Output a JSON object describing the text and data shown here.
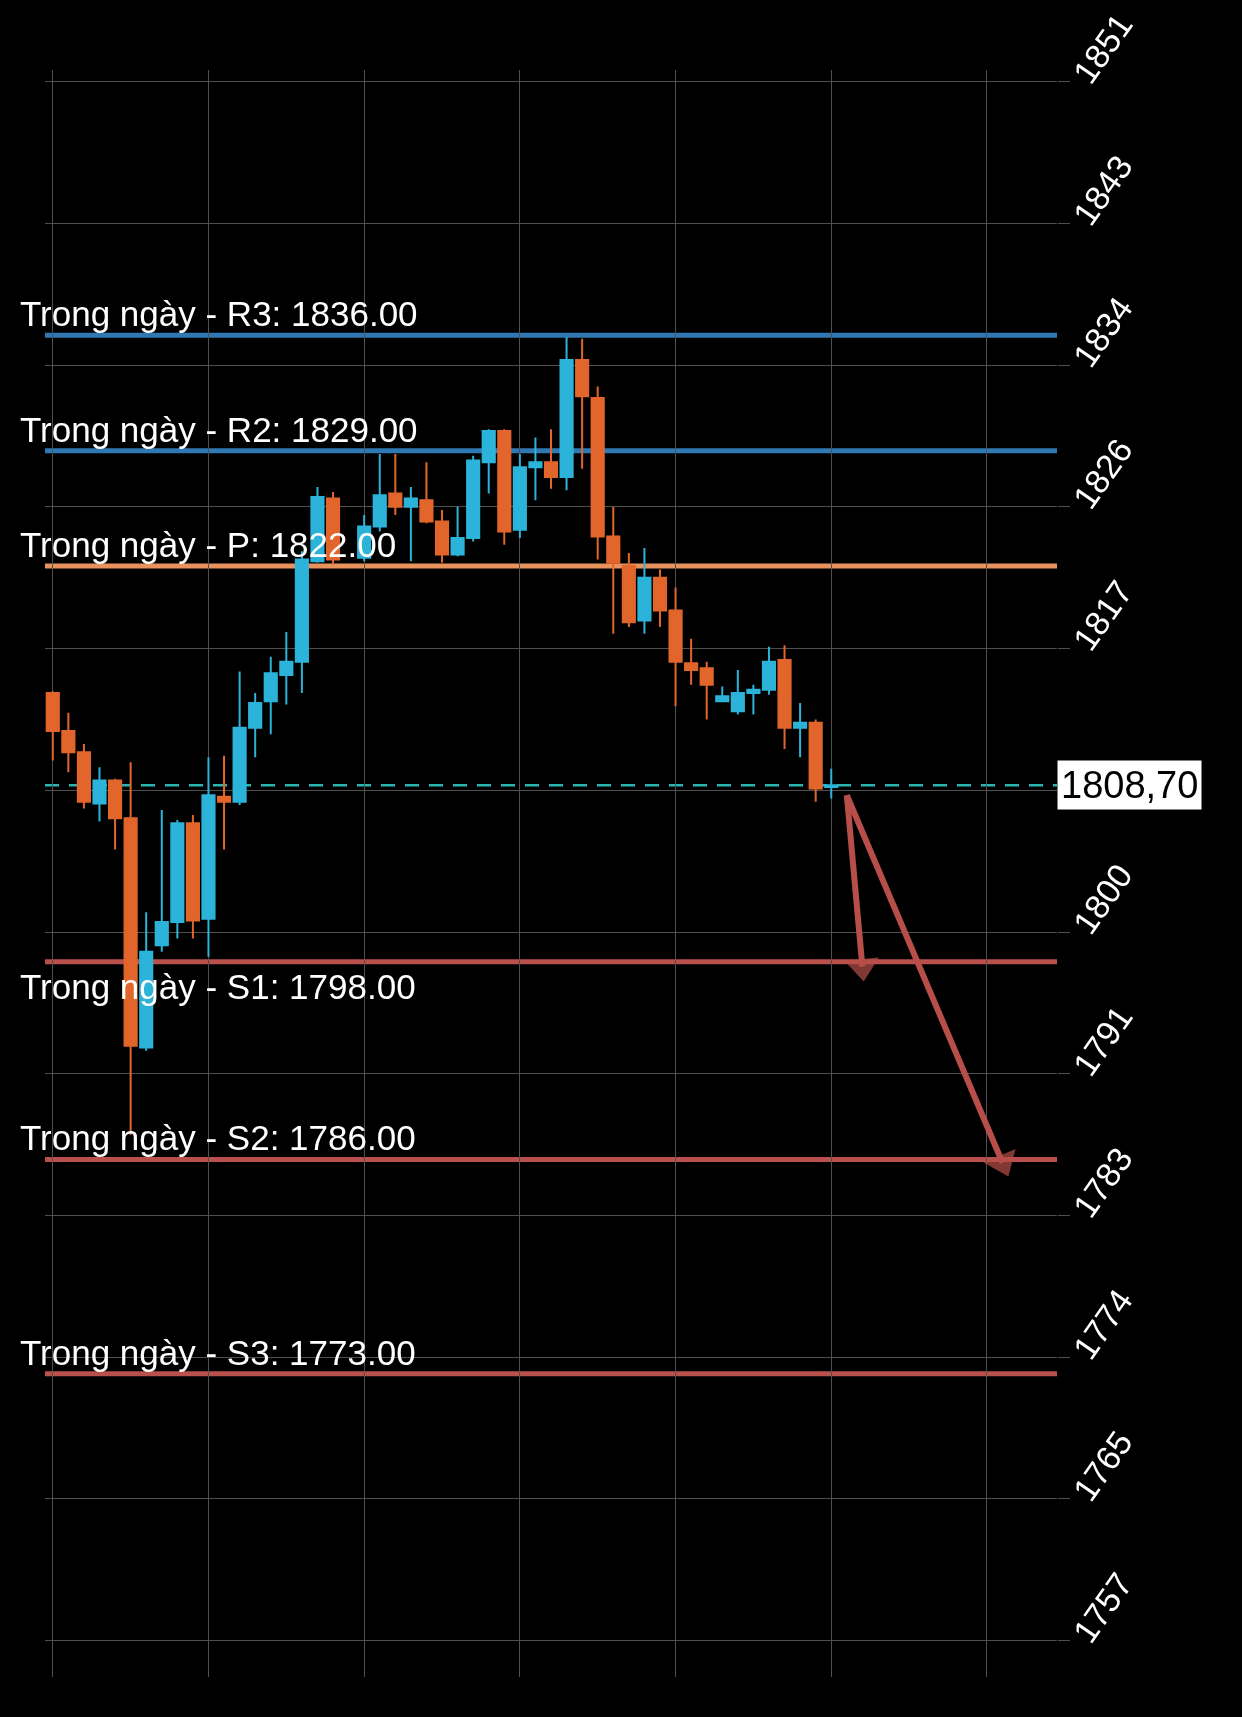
{
  "chart_data": {
    "type": "candlestick",
    "categories": [
      null,
      null,
      null,
      null,
      null,
      null,
      null,
      null,
      null,
      null,
      null,
      null,
      null,
      null,
      null,
      null,
      null,
      null,
      null,
      null,
      null,
      null,
      null,
      null,
      null,
      null,
      null,
      null,
      null,
      null,
      null,
      null,
      null,
      null,
      null,
      null,
      null,
      null,
      null,
      null,
      null,
      null,
      null,
      null,
      null,
      null,
      null,
      null,
      null,
      null,
      null,
      null,
      null,
      null,
      null,
      null,
      null,
      null,
      null,
      null,
      null,
      null,
      null,
      null,
      null
    ],
    "ohlc": [
      [
        1814.3,
        1814.4,
        1810.2,
        1812.0
      ],
      [
        1812.0,
        1813.1,
        1809.5,
        1810.7
      ],
      [
        1810.7,
        1811.2,
        1807.3,
        1807.7
      ],
      [
        1807.6,
        1809.8,
        1806.5,
        1809.0
      ],
      [
        1809.0,
        1809.1,
        1804.8,
        1806.7
      ],
      [
        1806.7,
        1810.1,
        1787.5,
        1792.9
      ],
      [
        1792.8,
        1801.0,
        1792.6,
        1798.6
      ],
      [
        1799.0,
        1807.2,
        1798.6,
        1800.4
      ],
      [
        1800.4,
        1806.6,
        1799.4,
        1806.4
      ],
      [
        1806.4,
        1806.9,
        1799.4,
        1800.5
      ],
      [
        1800.6,
        1810.4,
        1798.3,
        1808.1
      ],
      [
        1808.0,
        1810.5,
        1804.8,
        1807.7
      ],
      [
        1807.7,
        1815.6,
        1807.5,
        1812.2
      ],
      [
        1812.2,
        1814.3,
        1810.4,
        1813.7
      ],
      [
        1813.8,
        1816.5,
        1811.8,
        1815.5
      ],
      [
        1815.4,
        1818.0,
        1813.6,
        1816.2
      ],
      [
        1816.2,
        1822.9,
        1814.3,
        1822.4
      ],
      [
        1822.3,
        1826.8,
        1822.2,
        1826.2
      ],
      [
        1826.1,
        1826.5,
        1822.1,
        1822.4
      ],
      null,
      [
        1822.5,
        1825.1,
        1822.3,
        1824.4
      ],
      [
        1824.4,
        1828.8,
        1824.1,
        1826.3
      ],
      [
        1826.4,
        1828.8,
        1825.1,
        1825.6
      ],
      [
        1825.6,
        1826.8,
        1822.3,
        1826.1
      ],
      [
        1826.0,
        1828.3,
        1824.6,
        1824.7
      ],
      [
        1824.7,
        1825.4,
        1822.2,
        1822.7
      ],
      [
        1822.7,
        1825.6,
        1822.6,
        1823.7
      ],
      [
        1823.7,
        1828.7,
        1823.5,
        1828.4
      ],
      [
        1828.3,
        1830.3,
        1826.4,
        1830.2
      ],
      [
        1830.2,
        1830.3,
        1823.3,
        1824.1
      ],
      [
        1824.2,
        1828.8,
        1823.7,
        1828.0
      ],
      [
        1828.0,
        1829.8,
        1826.0,
        1828.3
      ],
      [
        1828.3,
        1830.3,
        1826.7,
        1827.4
      ],
      [
        1827.4,
        1835.9,
        1826.6,
        1834.5
      ],
      [
        1834.5,
        1835.8,
        1827.9,
        1832.3
      ],
      [
        1832.2,
        1832.9,
        1822.4,
        1823.8
      ],
      [
        1823.8,
        1825.6,
        1817.9,
        1822.2
      ],
      [
        1822.0,
        1822.8,
        1818.3,
        1818.6
      ],
      [
        1818.7,
        1823.1,
        1817.9,
        1821.3
      ],
      [
        1821.3,
        1821.8,
        1818.3,
        1819.3
      ],
      [
        1819.3,
        1820.7,
        1813.5,
        1816.2
      ],
      [
        1816.1,
        1817.6,
        1814.8,
        1815.7
      ],
      [
        1815.8,
        1816.2,
        1812.7,
        1814.8
      ],
      [
        1813.8,
        1814.7,
        1813.8,
        1814.1
      ],
      [
        1813.2,
        1815.7,
        1813.0,
        1814.3
      ],
      [
        1814.3,
        1814.8,
        1813.0,
        1814.5
      ],
      [
        1814.5,
        1817.1,
        1814.2,
        1816.2
      ],
      [
        1816.3,
        1817.2,
        1810.9,
        1812.2
      ],
      [
        1812.2,
        1813.7,
        1810.4,
        1812.5
      ],
      [
        1812.5,
        1812.7,
        1807.7,
        1808.5
      ],
      [
        1808.6,
        1809.7,
        1807.9,
        1808.7
      ],
      null,
      null,
      null,
      null,
      null,
      null,
      null,
      null,
      null,
      null,
      null,
      null,
      null,
      null
    ],
    "colors": [
      "#e2652b",
      "#e2652b",
      "#e2652b",
      "#2cb3d9",
      "#e2652b",
      "#e2652b",
      "#2cb3d9",
      "#2cb3d9",
      "#2cb3d9",
      "#e2652b",
      "#2cb3d9",
      "#e2652b",
      "#2cb3d9",
      "#2cb3d9",
      "#2cb3d9",
      "#2cb3d9",
      "#2cb3d9",
      "#2cb3d9",
      "#e2652b",
      null,
      "#2cb3d9",
      "#2cb3d9",
      "#e2652b",
      "#2cb3d9",
      "#e2652b",
      "#e2652b",
      "#2cb3d9",
      "#2cb3d9",
      "#2cb3d9",
      "#e2652b",
      "#2cb3d9",
      "#2cb3d9",
      "#e2652b",
      "#2cb3d9",
      "#e2652b",
      "#e2652b",
      "#e2652b",
      "#e2652b",
      "#2cb3d9",
      "#e2652b",
      "#e2652b",
      "#e2652b",
      "#e2652b",
      "#2cb3d9",
      "#2cb3d9",
      "#2cb3d9",
      "#2cb3d9",
      "#e2652b",
      "#2cb3d9",
      "#e2652b",
      "#2cb3d9",
      null,
      null,
      null,
      null,
      null,
      null,
      null,
      null,
      null,
      null,
      null,
      null,
      null,
      null
    ],
    "series": [
      {
        "type": "line",
        "color": "#b84e4a",
        "marker": "triangle",
        "values": [
          null,
          null,
          null,
          null,
          null,
          null,
          null,
          null,
          null,
          null,
          null,
          null,
          null,
          null,
          null,
          null,
          null,
          null,
          null,
          null,
          null,
          null,
          null,
          null,
          null,
          null,
          null,
          null,
          null,
          null,
          null,
          null,
          null,
          null,
          null,
          null,
          null,
          null,
          null,
          null,
          null,
          null,
          null,
          null,
          null,
          null,
          null,
          null,
          null,
          null,
          null,
          1808.1,
          1797.7,
          null,
          null,
          null,
          null,
          null,
          null,
          null,
          null,
          null,
          null,
          null,
          null
        ]
      },
      {
        "type": "line",
        "color": "#b84e4a",
        "marker": "triangle",
        "values": [
          null,
          null,
          null,
          null,
          null,
          null,
          null,
          null,
          null,
          null,
          null,
          null,
          null,
          null,
          null,
          null,
          null,
          null,
          null,
          null,
          null,
          null,
          null,
          null,
          null,
          null,
          null,
          null,
          null,
          null,
          null,
          null,
          null,
          null,
          null,
          null,
          null,
          null,
          null,
          null,
          null,
          null,
          null,
          null,
          null,
          null,
          null,
          null,
          null,
          null,
          null,
          1808.1,
          null,
          null,
          null,
          null,
          null,
          null,
          null,
          null,
          null,
          1785.8,
          null,
          null,
          null
        ]
      }
    ],
    "ref_lines": [
      {
        "axis": "y",
        "value": 1836,
        "label": "Trong ngày - R3: 1836.00",
        "color": "#2f78b4"
      },
      {
        "axis": "y",
        "value": 1829,
        "label": "Trong ngày - R2: 1829.00",
        "color": "#2f78b4"
      },
      {
        "axis": "y",
        "value": 1822,
        "label": "Trong ngày - P: 1822.00",
        "color": "#e8935e"
      },
      {
        "axis": "y",
        "value": 1798,
        "label": "Trong ngày - S1: 1798.00",
        "color": "#b9504b"
      },
      {
        "axis": "y",
        "value": 1786,
        "label": "Trong ngày - S2: 1786.00",
        "color": "#b9504b"
      },
      {
        "axis": "y",
        "value": 1773,
        "label": "Trong ngày - S3: 1773.00",
        "color": "#b9504b"
      },
      {
        "axis": "y",
        "value": 1808.7,
        "label": "1808,70",
        "color": "#2bb5b0",
        "line_style": "dashed"
      }
    ],
    "ylim": [
      1754.6,
      1852.1
    ],
    "yticks": [
      {
        "value": 1756.8,
        "label": "1757"
      },
      {
        "value": 1765.4,
        "label": "1765"
      },
      1774,
      {
        "value": 1782.6,
        "label": "1783"
      },
      {
        "value": 1791.2,
        "label": "1791"
      },
      {
        "value": 1799.8,
        "label": "1800"
      },
      {
        "value": 1808.4,
        "label": null
      },
      1817,
      {
        "value": 1825.6,
        "label": "1826"
      },
      {
        "value": 1834.2,
        "label": "1834"
      },
      {
        "value": 1842.8,
        "label": "1843"
      },
      {
        "value": 1851.4,
        "label": "1851"
      }
    ],
    "grid": true,
    "tick_labels": "y"
  }
}
